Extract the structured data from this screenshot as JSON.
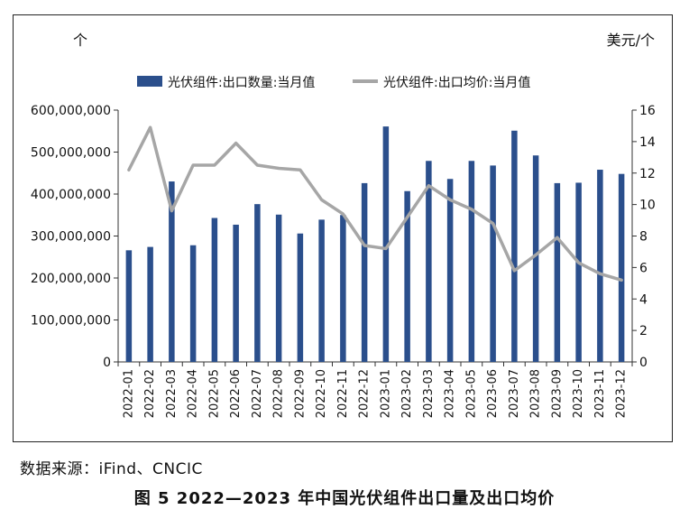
{
  "chart_data": {
    "type": "bar",
    "left_unit": "个",
    "right_unit": "美元/个",
    "categories": [
      "2022-01",
      "2022-02",
      "2022-03",
      "2022-04",
      "2022-05",
      "2022-06",
      "2022-07",
      "2022-08",
      "2022-09",
      "2022-10",
      "2022-11",
      "2022-12",
      "2023-01",
      "2023-02",
      "2023-03",
      "2023-04",
      "2023-05",
      "2023-06",
      "2023-07",
      "2023-08",
      "2023-09",
      "2023-10",
      "2023-11",
      "2023-12"
    ],
    "series": [
      {
        "name": "光伏组件:出口数量:当月值",
        "type": "bar",
        "axis": "left",
        "color": "#2b4f8c",
        "values": [
          266000000,
          274000000,
          430000000,
          278000000,
          343000000,
          327000000,
          376000000,
          351000000,
          306000000,
          339000000,
          350000000,
          426000000,
          561000000,
          407000000,
          479000000,
          436000000,
          479000000,
          468000000,
          551000000,
          492000000,
          426000000,
          427000000,
          458000000,
          448000000
        ]
      },
      {
        "name": "光伏组件:出口均价:当月值",
        "type": "line",
        "axis": "right",
        "color": "#a6a6a6",
        "values": [
          12.2,
          14.9,
          9.6,
          12.5,
          12.5,
          13.9,
          12.5,
          12.3,
          12.2,
          10.3,
          9.4,
          7.4,
          7.2,
          9.2,
          11.2,
          10.3,
          9.7,
          8.8,
          5.8,
          6.8,
          7.9,
          6.3,
          5.6,
          5.2
        ]
      }
    ],
    "left_axis": {
      "min": 0,
      "max": 600000000,
      "ticks": [
        "0",
        "100,000,000",
        "200,000,000",
        "300,000,000",
        "400,000,000",
        "500,000,000",
        "600,000,000"
      ]
    },
    "right_axis": {
      "min": 0,
      "max": 16,
      "ticks": [
        "0",
        "2",
        "4",
        "6",
        "8",
        "10",
        "12",
        "14",
        "16"
      ]
    },
    "legend_position": "top-center",
    "grid": false
  },
  "source": "数据来源：iFind、CNCIC",
  "caption": "图 5  2022—2023 年中国光伏组件出口量及出口均价"
}
